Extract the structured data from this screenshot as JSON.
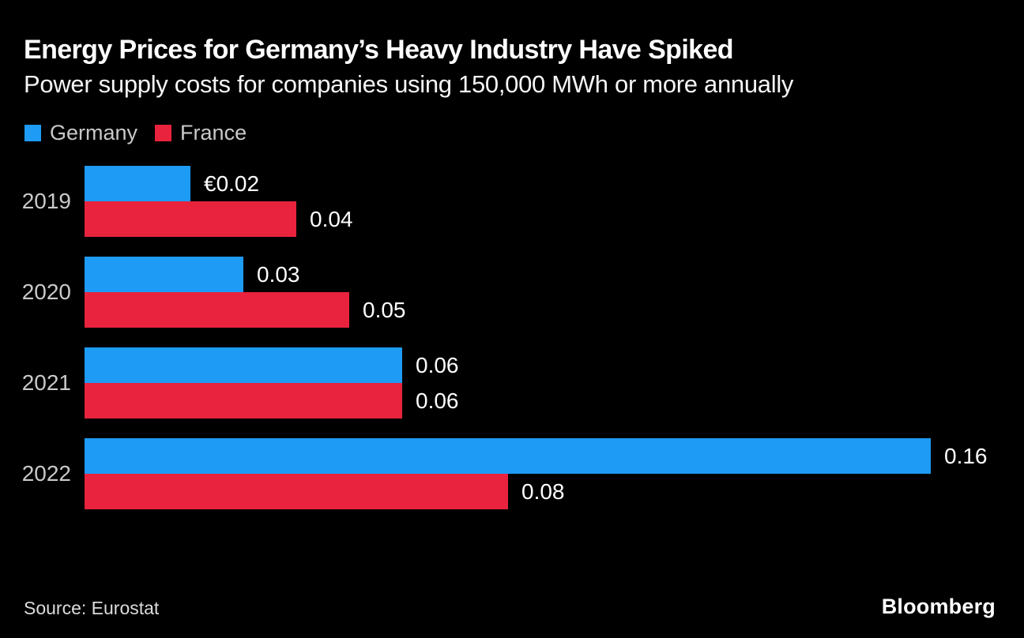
{
  "header": {
    "title": "Energy Prices for Germany’s Heavy Industry Have Spiked",
    "subtitle": "Power supply costs for companies using 150,000 MWh or more annually"
  },
  "chart_data": {
    "type": "bar",
    "orientation": "horizontal",
    "title": "Energy Prices for Germany’s Heavy Industry Have Spiked",
    "subtitle": "Power supply costs for companies using 150,000 MWh or more annually",
    "categories": [
      "2019",
      "2020",
      "2021",
      "2022"
    ],
    "series": [
      {
        "name": "Germany",
        "color": "#1e9bf5",
        "values": [
          0.02,
          0.03,
          0.06,
          0.16
        ],
        "labels": [
          "€0.02",
          "0.03",
          "0.06",
          "0.16"
        ]
      },
      {
        "name": "France",
        "color": "#e9233d",
        "values": [
          0.04,
          0.05,
          0.06,
          0.08
        ],
        "labels": [
          "0.04",
          "0.05",
          "0.06",
          "0.08"
        ]
      }
    ],
    "xlim": [
      0,
      0.16
    ],
    "value_unit_prefix": "€",
    "legend_position": "top-left",
    "grid": false,
    "background_color": "#000000",
    "text_color": "#ffffff",
    "muted_text_color": "#c9c9c9"
  },
  "footer": {
    "source": "Source: Eurostat",
    "brand": "Bloomberg"
  }
}
